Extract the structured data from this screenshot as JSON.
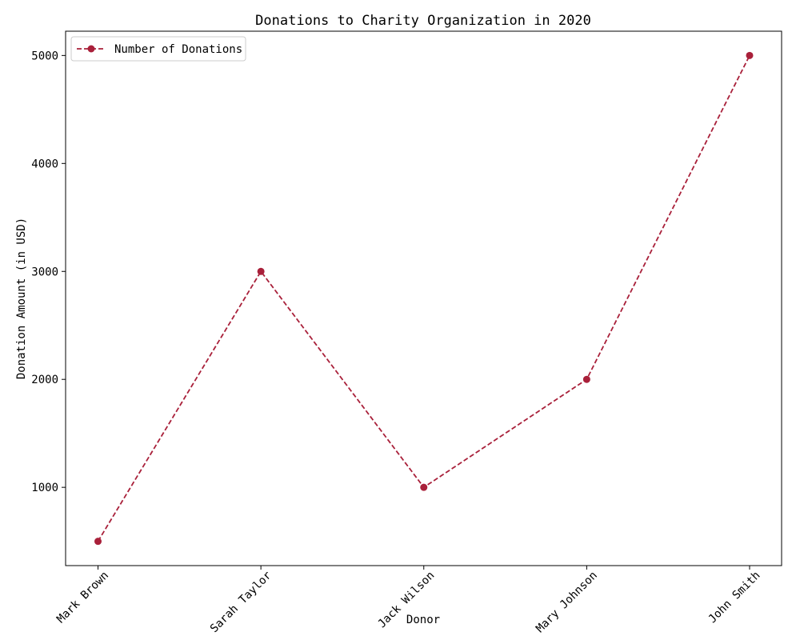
{
  "colors": {
    "series": "#a9203a",
    "axes": "#000000",
    "background": "#ffffff"
  },
  "chart_data": {
    "type": "line",
    "title": "Donations to Charity Organization in 2020",
    "xlabel": "Donor",
    "ylabel": "Donation Amount (in USD)",
    "categories": [
      "Mark Brown",
      "Sarah Taylor",
      "Jack Wilson",
      "Mary Johnson",
      "John Smith"
    ],
    "series": [
      {
        "name": "Number of Donations",
        "values": [
          500,
          3000,
          1000,
          2000,
          5000
        ],
        "line_style": "dashed",
        "marker": "circle"
      }
    ],
    "ylim": [
      275,
      5225
    ],
    "yticks": [
      1000,
      2000,
      3000,
      4000,
      5000
    ],
    "xtick_rotation": 45,
    "legend_position": "upper-left",
    "grid": false
  }
}
